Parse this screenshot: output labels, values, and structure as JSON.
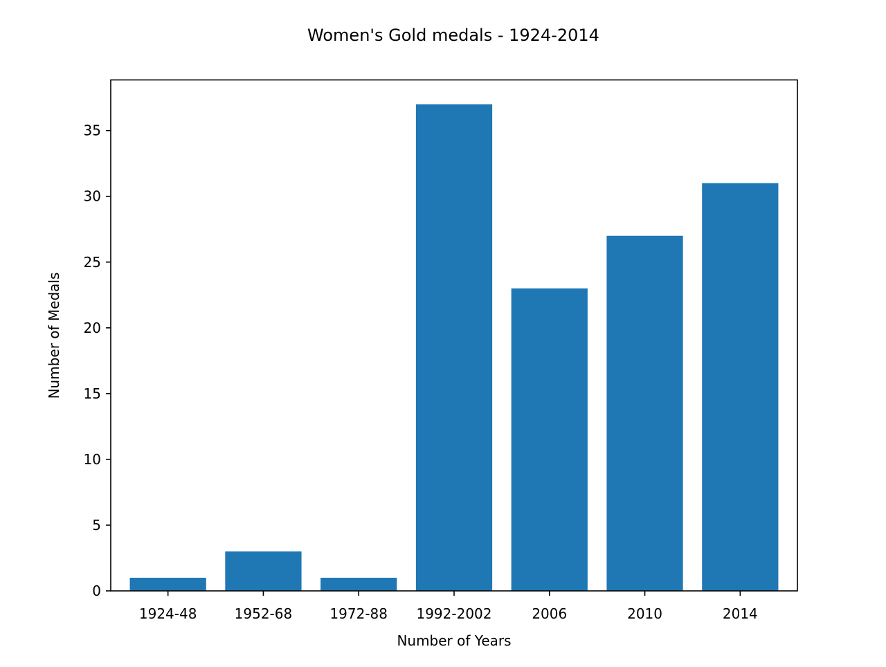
{
  "chart_data": {
    "type": "bar",
    "title": "Women's Gold medals - 1924-2014",
    "xlabel": "Number of Years",
    "ylabel": "Number of Medals",
    "categories": [
      "1924-48",
      "1952-68",
      "1972-88",
      "1992-2002",
      "2006",
      "2010",
      "2014"
    ],
    "values": [
      1,
      3,
      1,
      37,
      23,
      27,
      31
    ],
    "ylim": [
      0,
      38.85
    ],
    "yticks": [
      0,
      5,
      10,
      15,
      20,
      25,
      30,
      35
    ],
    "bar_color": "#1f77b4",
    "grid": false,
    "legend": "none"
  }
}
